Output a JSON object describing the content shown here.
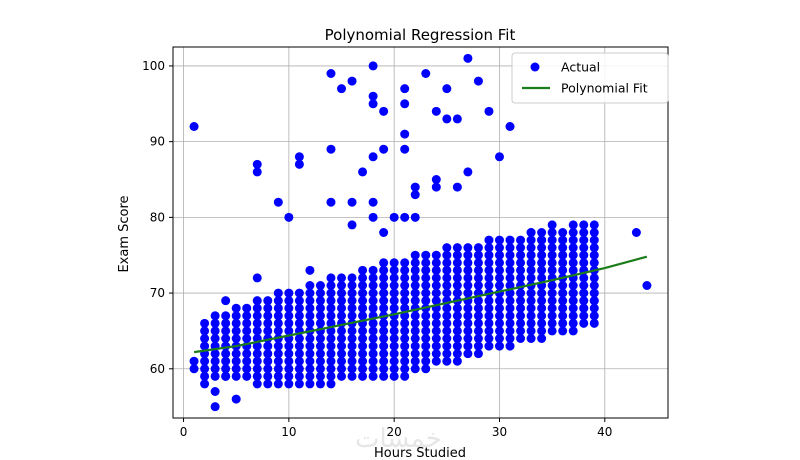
{
  "chart_data": {
    "type": "scatter",
    "title": "Polynomial Regression Fit",
    "xlabel": "Hours Studied",
    "ylabel": "Exam Score",
    "xlim": [
      -1,
      46
    ],
    "ylim": [
      53.5,
      102.5
    ],
    "xticks": [
      0,
      10,
      20,
      30,
      40
    ],
    "yticks": [
      60,
      70,
      80,
      90,
      100
    ],
    "grid": true,
    "legend_position": "top-right",
    "colors": {
      "actual": "#0000ff",
      "fit": "#1a7d1a"
    },
    "series": [
      {
        "name": "Actual",
        "kind": "scatter",
        "points": [
          [
            1,
            92
          ],
          [
            1,
            61
          ],
          [
            1,
            60
          ],
          [
            14,
            99
          ],
          [
            15,
            97
          ],
          [
            16,
            98
          ],
          [
            18,
            100
          ],
          [
            18,
            96
          ],
          [
            18,
            95
          ],
          [
            19,
            94
          ],
          [
            21,
            97
          ],
          [
            21,
            95
          ],
          [
            23,
            99
          ],
          [
            24,
            94
          ],
          [
            25,
            97
          ],
          [
            25,
            93
          ],
          [
            26,
            93
          ],
          [
            27,
            101
          ],
          [
            28,
            98
          ],
          [
            29,
            94
          ],
          [
            11,
            88
          ],
          [
            11,
            87
          ],
          [
            14,
            89
          ],
          [
            17,
            86
          ],
          [
            18,
            88
          ],
          [
            19,
            89
          ],
          [
            21,
            91
          ],
          [
            21,
            89
          ],
          [
            30,
            88
          ],
          [
            31,
            92
          ],
          [
            27,
            86
          ],
          [
            26,
            84
          ],
          [
            24,
            85
          ],
          [
            24,
            84
          ],
          [
            7,
            87
          ],
          [
            7,
            86
          ],
          [
            9,
            82
          ],
          [
            10,
            80
          ],
          [
            14,
            82
          ],
          [
            16,
            82
          ],
          [
            16,
            79
          ],
          [
            18,
            82
          ],
          [
            18,
            80
          ],
          [
            19,
            78
          ],
          [
            20,
            80
          ],
          [
            21,
            80
          ],
          [
            22,
            80
          ],
          [
            22,
            83
          ],
          [
            22,
            84
          ],
          [
            7,
            72
          ],
          [
            2,
            58
          ],
          [
            3,
            57
          ],
          [
            3,
            55
          ],
          [
            5,
            56
          ],
          [
            4,
            59
          ],
          [
            4,
            69
          ],
          [
            12,
            73
          ],
          [
            43,
            78
          ],
          [
            44,
            71
          ],
          [
            38,
            68
          ],
          [
            39,
            69
          ],
          [
            37,
            70
          ],
          [
            33,
            78
          ],
          [
            35,
            79
          ],
          [
            34,
            77
          ]
        ],
        "band": {
          "x_start": 2,
          "x_end": 39,
          "upper": [
            [
              2,
              66
            ],
            [
              10,
              70
            ],
            [
              20,
              74
            ],
            [
              30,
              77
            ],
            [
              39,
              79
            ]
          ],
          "lower": [
            [
              2,
              59
            ],
            [
              10,
              58
            ],
            [
              20,
              59
            ],
            [
              30,
              63
            ],
            [
              39,
              66
            ]
          ]
        }
      },
      {
        "name": "Polynomial Fit",
        "kind": "line",
        "points": [
          [
            1,
            62.2
          ],
          [
            5,
            63.0
          ],
          [
            10,
            64.4
          ],
          [
            15,
            65.8
          ],
          [
            20,
            67.2
          ],
          [
            25,
            68.7
          ],
          [
            30,
            70.2
          ],
          [
            35,
            71.7
          ],
          [
            40,
            73.3
          ],
          [
            44,
            74.8
          ]
        ]
      }
    ]
  }
}
